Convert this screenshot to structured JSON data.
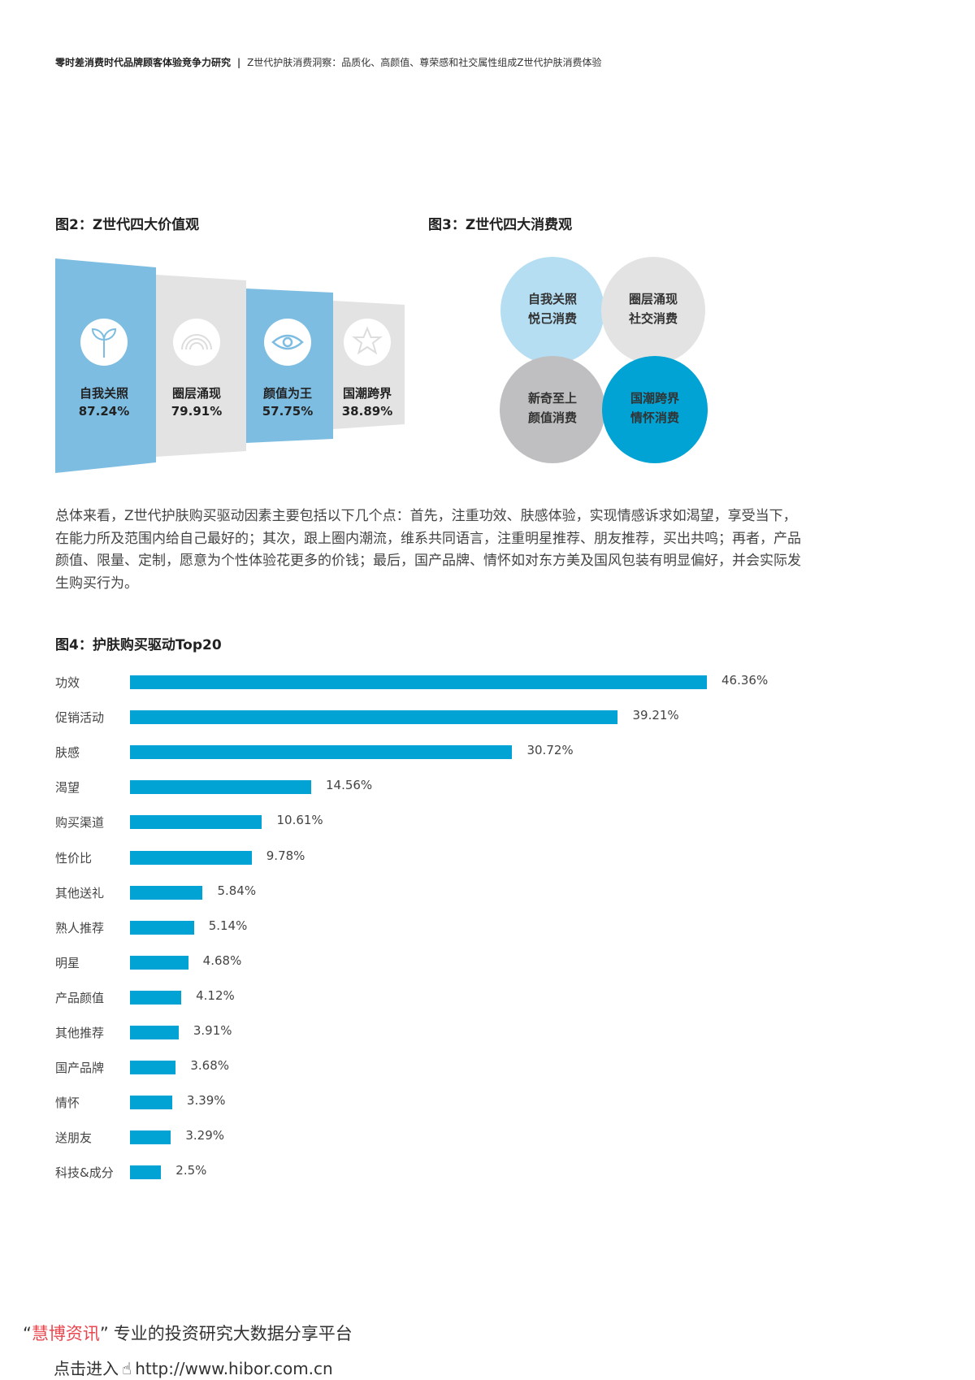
{
  "header": {
    "report_title": "零时差消费时代品牌顾客体验竞争力研究",
    "separator": "|",
    "section": "Z世代护肤消费洞察：品质化、高颜值、尊荣感和社交属性组成Z世代护肤消费体验"
  },
  "figure2": {
    "title": "图2：Z世代四大价值观",
    "panels": [
      {
        "label": "自我关照",
        "value": "87.24%",
        "icon": "sprout-icon",
        "color": "#7dbde2"
      },
      {
        "label": "圈层涌现",
        "value": "79.91%",
        "icon": "rainbow-icon",
        "color": "#e3e3e3"
      },
      {
        "label": "颜值为王",
        "value": "57.75%",
        "icon": "eye-icon",
        "color": "#7dbde2"
      },
      {
        "label": "国潮跨界",
        "value": "38.89%",
        "icon": "star-icon",
        "color": "#e3e3e3"
      }
    ]
  },
  "figure3": {
    "title": "图3：Z世代四大消费观",
    "items": [
      {
        "line1": "自我关照",
        "line2": "悦己消费",
        "color": "#b5def3"
      },
      {
        "line1": "圈层涌现",
        "line2": "社交消费",
        "color": "#e3e3e3"
      },
      {
        "line1": "新奇至上",
        "line2": "颜值消费",
        "color": "#bfbfc1"
      },
      {
        "line1": "国潮跨界",
        "line2": "情怀消费",
        "color": "#00a3d4"
      }
    ]
  },
  "paragraph": "总体来看，Z世代护肤购买驱动因素主要包括以下几个点：首先，注重功效、肤感体验，实现情感诉求如渴望，享受当下，在能力所及范围内给自己最好的；其次，跟上圈内潮流，维系共同语言，注重明星推荐、朋友推荐，买出共鸣；再者，产品颜值、限量、定制，愿意为个性体验花更多的价钱；最后，国产品牌、情怀如对东方美及国风包装有明显偏好，并会实际发生购买行为。",
  "chart_data": {
    "type": "bar",
    "orientation": "horizontal",
    "title": "图4：护肤购买驱动Top20",
    "bar_color": "#00a3d4",
    "categories": [
      "功效",
      "促销活动",
      "肤感",
      "渴望",
      "购买渠道",
      "性价比",
      "其他送礼",
      "熟人推荐",
      "明星",
      "产品颜值",
      "其他推荐",
      "国产品牌",
      "情怀",
      "送朋友",
      "科技&成分"
    ],
    "values": [
      46.36,
      39.21,
      30.72,
      14.56,
      10.61,
      9.78,
      5.84,
      5.14,
      4.68,
      4.12,
      3.91,
      3.68,
      3.39,
      3.29,
      2.5
    ],
    "labels": [
      "46.36%",
      "39.21%",
      "30.72%",
      "14.56%",
      "10.61%",
      "9.78%",
      "5.84%",
      "5.14%",
      "4.68%",
      "4.12%",
      "3.91%",
      "3.68%",
      "3.39%",
      "3.29%",
      "2.5%"
    ]
  },
  "footer": {
    "quote_open": "“",
    "brand": "慧博资讯",
    "quote_close": "”",
    "slogan": "专业的投资研究大数据分享平台",
    "enter": "点击进入",
    "url": "http://www.hibor.com.cn",
    "brand_color": "#e8474f"
  }
}
